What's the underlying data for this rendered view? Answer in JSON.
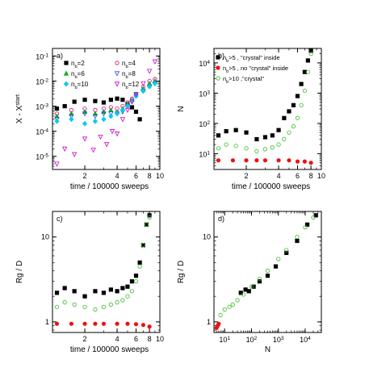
{
  "chart_data": [
    {
      "type": "scatter",
      "panel_label": "a)",
      "xlabel": "time / 100000 sweeps",
      "ylabel": "X - X^start",
      "ylabel_main": "X - X",
      "ylabel_sup": "start",
      "xscale": "log",
      "yscale": "log",
      "xlim": [
        1,
        10
      ],
      "ylim": [
        3e-06,
        0.2
      ],
      "xticks": [
        {
          "value": 2,
          "label": "2"
        },
        {
          "value": 4,
          "label": "4"
        },
        {
          "value": 6,
          "label": "6"
        },
        {
          "value": 8,
          "label": "8"
        },
        {
          "value": 10,
          "label": "10"
        }
      ],
      "yticks": [
        {
          "value": 1e-05,
          "base": "10",
          "exp": "-5"
        },
        {
          "value": 0.0001,
          "base": "10",
          "exp": "-4"
        },
        {
          "value": 0.001,
          "base": "10",
          "exp": "-3"
        },
        {
          "value": 0.01,
          "base": "10",
          "exp": "-2"
        },
        {
          "value": 0.1,
          "base": "10",
          "exp": "-1"
        }
      ],
      "legend_placement": "top",
      "series": [
        {
          "name": "n_b=2",
          "name_main": "n",
          "name_sub": "b",
          "name_rest": "=2",
          "color": "#000000",
          "marker": "square",
          "filled": true,
          "x": [
            1.1,
            1.3,
            1.6,
            2.0,
            2.5,
            3.0,
            3.5,
            4.0,
            4.5,
            5.0,
            5.5,
            6.0,
            6.5
          ],
          "y": [
            0.0008,
            0.001,
            0.0015,
            0.0018,
            0.0016,
            0.0014,
            0.0018,
            0.002,
            0.0018,
            0.0012,
            0.0009,
            0.0006,
            0.0003
          ]
        },
        {
          "name": "n_b=4",
          "name_main": "n",
          "name_sub": "b",
          "name_rest": "=4",
          "color": "#e0007a",
          "marker": "circle",
          "filled": false,
          "x": [
            1.1,
            1.5,
            2.0,
            2.5,
            3.0,
            3.5,
            4.0,
            4.5,
            5.0,
            5.5,
            6.0,
            7.0,
            8.0,
            9.0
          ],
          "y": [
            0.0005,
            0.0007,
            0.0008,
            0.0007,
            0.0008,
            0.0009,
            0.0008,
            0.001,
            0.0014,
            0.002,
            0.003,
            0.006,
            0.01,
            0.012
          ]
        },
        {
          "name": "n_b=6",
          "name_main": "n",
          "name_sub": "b",
          "name_rest": "=6",
          "color": "#11aa22",
          "marker": "triangle",
          "filled": true,
          "x": [
            1.1,
            1.5,
            2.0,
            2.5,
            3.0,
            3.5,
            4.0,
            4.5,
            5.0,
            5.5,
            6.0,
            7.0,
            8.0,
            9.0
          ],
          "y": [
            0.0004,
            0.0005,
            0.0006,
            0.0005,
            0.0006,
            0.0007,
            0.0006,
            0.0008,
            0.0012,
            0.0018,
            0.003,
            0.005,
            0.008,
            0.01
          ]
        },
        {
          "name": "n_b=8",
          "name_main": "n",
          "name_sub": "b",
          "name_rest": "=8",
          "color": "#3344dd",
          "marker": "triangle-down",
          "filled": false,
          "x": [
            1.1,
            1.5,
            2.0,
            2.5,
            3.0,
            3.5,
            4.0,
            4.5,
            5.0,
            5.5,
            6.0,
            7.0,
            8.0,
            9.0
          ],
          "y": [
            0.0003,
            0.0004,
            0.0005,
            0.0004,
            0.0005,
            0.0005,
            0.0005,
            0.0006,
            0.001,
            0.0015,
            0.0025,
            0.004,
            0.006,
            0.008
          ]
        },
        {
          "name": "n_b=10",
          "name_main": "n",
          "name_sub": "b",
          "name_rest": "=10",
          "color": "#00ccee",
          "marker": "diamond",
          "filled": true,
          "x": [
            1.1,
            1.5,
            2.0,
            2.5,
            3.0,
            3.5,
            4.0,
            4.5,
            5.0,
            5.5,
            6.0,
            7.0,
            8.0,
            9.0
          ],
          "y": [
            0.00025,
            0.0003,
            0.0002,
            0.00025,
            0.0003,
            0.0004,
            0.0005,
            0.0007,
            0.001,
            0.0016,
            0.0025,
            0.004,
            0.006,
            0.008
          ]
        },
        {
          "name": "n_b=12",
          "name_main": "n",
          "name_sub": "b",
          "name_rest": "=12",
          "color": "#cc00cc",
          "marker": "triangle-down",
          "filled": false,
          "x": [
            1.1,
            1.3,
            1.6,
            2.0,
            2.4,
            2.8,
            3.2,
            3.6,
            4.0,
            4.5,
            5.0,
            5.5,
            6.0,
            7.0,
            8.0,
            9.0
          ],
          "y": [
            5e-06,
            2e-05,
            1.2e-05,
            5e-05,
            1.8e-05,
            6e-05,
            3e-05,
            0.0001,
            8e-05,
            0.0003,
            0.0007,
            0.0015,
            0.003,
            0.008,
            0.025,
            0.06
          ]
        }
      ]
    },
    {
      "type": "scatter",
      "panel_label": "b)",
      "xlabel": "time / 100000 sweeps",
      "ylabel": "N",
      "xscale": "log",
      "yscale": "log",
      "xlim": [
        1,
        10
      ],
      "ylim": [
        3,
        30000
      ],
      "xticks": [
        {
          "value": 2,
          "label": "2"
        },
        {
          "value": 4,
          "label": "4"
        },
        {
          "value": 6,
          "label": "6"
        },
        {
          "value": 8,
          "label": "8"
        },
        {
          "value": 10,
          "label": "10"
        }
      ],
      "yticks": [
        {
          "value": 10,
          "base": "10",
          "exp": "1"
        },
        {
          "value": 100,
          "base": "10",
          "exp": "2"
        },
        {
          "value": 1000,
          "base": "10",
          "exp": "3"
        },
        {
          "value": 10000,
          "base": "10",
          "exp": "4"
        }
      ],
      "legend_placement": "top-left",
      "series": [
        {
          "name": "n_b>5 , \"crystal\" inside",
          "name_main": "n",
          "name_sub": "b",
          "name_rest": ">5 , \"crystal\" inside",
          "color": "#000000",
          "marker": "square",
          "filled": true,
          "x": [
            1.1,
            1.3,
            1.6,
            2.0,
            2.5,
            3.0,
            3.5,
            4.0,
            4.5,
            5.0,
            5.5,
            6.0,
            6.5,
            7.0,
            7.5,
            8.0
          ],
          "y": [
            40,
            55,
            60,
            50,
            30,
            35,
            40,
            60,
            150,
            250,
            400,
            800,
            2000,
            5000,
            12000,
            25000
          ]
        },
        {
          "name": "n_b>5 , no \"crystal\" inside",
          "name_main": "n",
          "name_sub": "b",
          "name_rest": ">5 , no \"crystal\" inside",
          "color": "#ee1111",
          "marker": "circle",
          "filled": true,
          "x": [
            1.1,
            1.5,
            2.0,
            2.5,
            3.0,
            4.0,
            5.0,
            6.0,
            7.0,
            8.0
          ],
          "y": [
            6,
            6,
            6,
            6,
            6,
            6,
            6,
            5.5,
            5.5,
            5
          ]
        },
        {
          "name": "n_b>10 ,\"crystal\"",
          "name_main": "n",
          "name_sub": "b",
          "name_rest": ">10 ,\"crystal\"",
          "color": "#33bb22",
          "marker": "circle",
          "filled": false,
          "x": [
            1.1,
            1.3,
            1.6,
            2.0,
            2.5,
            3.0,
            3.5,
            4.0,
            4.5,
            5.0,
            5.5,
            6.0,
            6.5,
            7.0,
            7.5,
            8.0
          ],
          "y": [
            15,
            20,
            18,
            15,
            12,
            14,
            16,
            20,
            30,
            50,
            80,
            150,
            400,
            1200,
            5000,
            20000
          ]
        }
      ]
    },
    {
      "type": "scatter",
      "panel_label": "c)",
      "xlabel": "time / 100000 sweeps",
      "ylabel": "Rg / D",
      "xscale": "log",
      "yscale": "log",
      "xlim": [
        1,
        10
      ],
      "ylim": [
        0.75,
        20
      ],
      "xticks": [
        {
          "value": 2,
          "label": "2"
        },
        {
          "value": 4,
          "label": "4"
        },
        {
          "value": 6,
          "label": "6"
        },
        {
          "value": 8,
          "label": "8"
        },
        {
          "value": 10,
          "label": "10"
        }
      ],
      "yticks": [
        {
          "value": 1,
          "label": "1"
        },
        {
          "value": 10,
          "label": "10"
        }
      ],
      "series": [
        {
          "name": "n_b>5 , \"crystal\" inside",
          "color": "#000000",
          "marker": "square",
          "filled": true,
          "x": [
            1.1,
            1.3,
            1.6,
            2.0,
            2.5,
            3.0,
            3.5,
            4.0,
            4.5,
            5.0,
            5.5,
            6.0,
            6.5,
            7.0,
            7.5,
            8.0
          ],
          "y": [
            2.2,
            2.5,
            2.3,
            2.0,
            2.3,
            2.2,
            2.4,
            2.3,
            2.5,
            2.6,
            3.0,
            3.5,
            5.0,
            8.0,
            14,
            18
          ]
        },
        {
          "name": "n_b>5 , no \"crystal\" inside",
          "color": "#ee1111",
          "marker": "circle",
          "filled": true,
          "x": [
            1.1,
            1.5,
            2.0,
            2.5,
            3.0,
            4.0,
            5.0,
            6.0,
            7.0,
            8.0
          ],
          "y": [
            0.95,
            0.95,
            0.95,
            0.95,
            0.95,
            0.95,
            0.95,
            0.94,
            0.92,
            0.88
          ]
        },
        {
          "name": "n_b>10 ,\"crystal\"",
          "color": "#33bb22",
          "marker": "circle",
          "filled": false,
          "x": [
            1.1,
            1.3,
            1.6,
            2.0,
            2.5,
            3.0,
            3.5,
            4.0,
            4.5,
            5.0,
            5.5,
            6.0,
            6.5,
            7.0,
            7.5,
            8.0
          ],
          "y": [
            1.5,
            1.7,
            1.6,
            1.5,
            1.4,
            1.5,
            1.6,
            1.7,
            1.8,
            2.0,
            2.3,
            3.0,
            4.5,
            8.0,
            14,
            17
          ]
        }
      ]
    },
    {
      "type": "scatter",
      "panel_label": "d)",
      "xlabel": "N",
      "ylabel": "Rg / D",
      "xscale": "log",
      "yscale": "log",
      "xlim": [
        4,
        40000
      ],
      "ylim": [
        0.75,
        20
      ],
      "xticks": [
        {
          "value": 10,
          "base": "10",
          "exp": "1"
        },
        {
          "value": 100,
          "base": "10",
          "exp": "2"
        },
        {
          "value": 1000,
          "base": "10",
          "exp": "3"
        },
        {
          "value": 10000,
          "base": "10",
          "exp": "4"
        }
      ],
      "yticks": [
        {
          "value": 1,
          "label": "1"
        },
        {
          "value": 10,
          "label": "10"
        }
      ],
      "series": [
        {
          "name": "n_b>5 , \"crystal\" inside",
          "color": "#000000",
          "marker": "square",
          "filled": true,
          "x": [
            40,
            60,
            80,
            120,
            200,
            400,
            800,
            2000,
            5000,
            12000,
            25000
          ],
          "y": [
            2.2,
            2.4,
            2.3,
            2.6,
            3.0,
            3.5,
            4.5,
            6.5,
            9.0,
            14,
            18
          ]
        },
        {
          "name": "n_b>5 , no \"crystal\" inside",
          "color": "#ee1111",
          "marker": "circle",
          "filled": true,
          "x": [
            5,
            5.5,
            6
          ],
          "y": [
            0.85,
            0.9,
            0.95
          ]
        },
        {
          "name": "n_b>10 ,\"crystal\"",
          "color": "#33bb22",
          "marker": "circle",
          "filled": false,
          "x": [
            7,
            10,
            15,
            20,
            30,
            50,
            100,
            200,
            400,
            1000,
            2000,
            5000,
            10000,
            20000
          ],
          "y": [
            1.2,
            1.4,
            1.5,
            1.6,
            1.8,
            2.1,
            2.6,
            3.2,
            4.0,
            5.5,
            7.0,
            10,
            13,
            17
          ]
        }
      ]
    }
  ]
}
